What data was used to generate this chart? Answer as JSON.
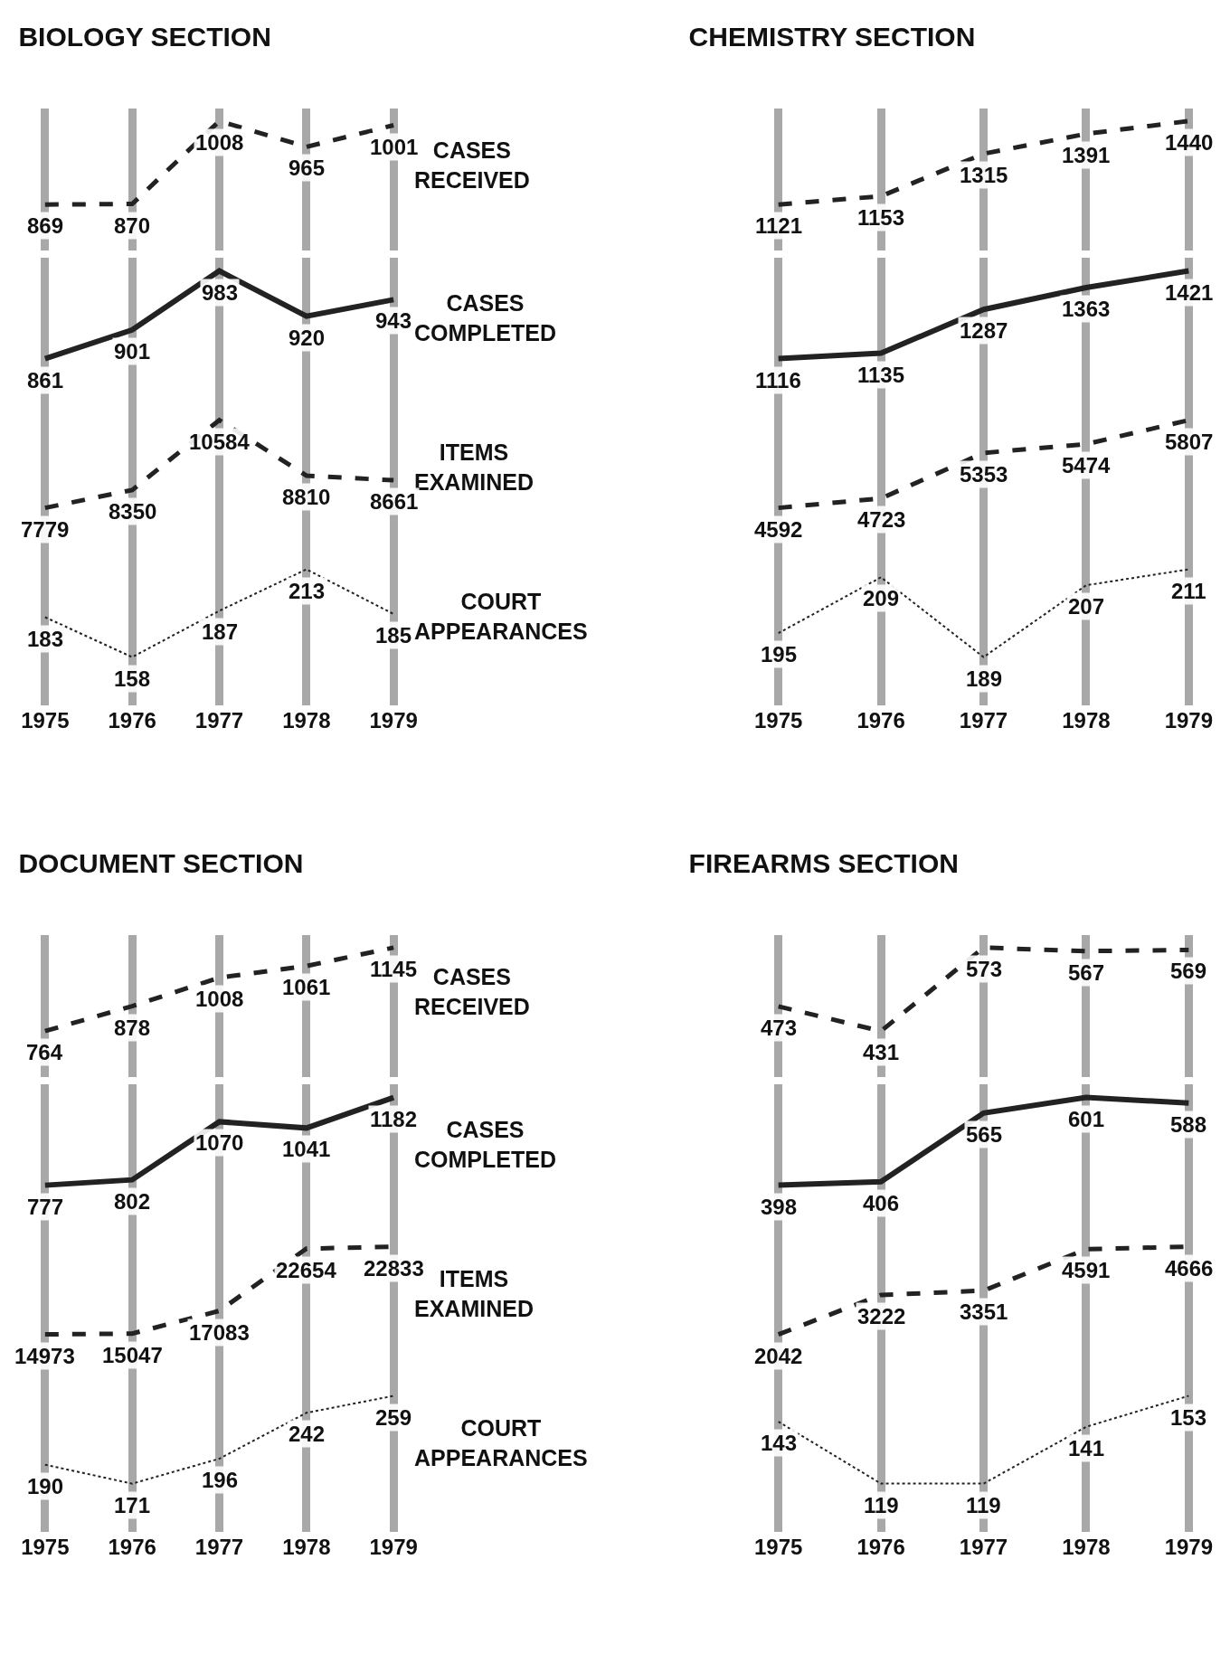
{
  "chart_data": [
    {
      "type": "line",
      "title": "BIOLOGY SECTION",
      "ylabel": "CASES RECEIVED",
      "categories": [
        "1975",
        "1976",
        "1977",
        "1978",
        "1979"
      ],
      "values": [
        869,
        870,
        1008,
        965,
        1001
      ],
      "color": "#222222",
      "line_style": "dashed",
      "data_labels": true,
      "grid": "x",
      "tick_labels": false
    },
    {
      "type": "line",
      "ylabel": "CASES COMPLETED",
      "categories": [
        "1975",
        "1976",
        "1977",
        "1978",
        "1979"
      ],
      "values": [
        861,
        901,
        983,
        920,
        943
      ],
      "color": "#222222",
      "line_style": "solid",
      "data_labels": true,
      "grid": "x",
      "tick_labels": false
    },
    {
      "type": "line",
      "ylabel": "ITEMS EXAMINED",
      "categories": [
        "1975",
        "1976",
        "1977",
        "1978",
        "1979"
      ],
      "values": [
        7779,
        8350,
        10584,
        8810,
        8661
      ],
      "color": "#222222",
      "line_style": "dashed",
      "data_labels": true,
      "grid": "x",
      "tick_labels": false
    },
    {
      "type": "line",
      "ylabel": "COURT APPEARANCES",
      "categories": [
        "1975",
        "1976",
        "1977",
        "1978",
        "1979"
      ],
      "values": [
        183,
        158,
        187,
        213,
        185
      ],
      "color": "#222222",
      "line_style": "dotted",
      "data_labels": true,
      "grid": "x",
      "tick_labels": "x"
    },
    {
      "type": "line",
      "title": "CHEMISTRY SECTION",
      "categories": [
        "1975",
        "1976",
        "1977",
        "1978",
        "1979"
      ],
      "values": [
        1121,
        1153,
        1315,
        1391,
        1440
      ],
      "color": "#222222",
      "line_style": "dashed",
      "data_labels": true,
      "grid": "x",
      "tick_labels": false
    },
    {
      "type": "line",
      "categories": [
        "1975",
        "1976",
        "1977",
        "1978",
        "1979"
      ],
      "values": [
        1116,
        1135,
        1287,
        1363,
        1421
      ],
      "color": "#222222",
      "line_style": "solid",
      "data_labels": true,
      "grid": "x",
      "tick_labels": false
    },
    {
      "type": "line",
      "categories": [
        "1975",
        "1976",
        "1977",
        "1978",
        "1979"
      ],
      "values": [
        4592,
        4723,
        5353,
        5474,
        5807
      ],
      "color": "#222222",
      "line_style": "dashed",
      "data_labels": true,
      "grid": "x",
      "tick_labels": false
    },
    {
      "type": "line",
      "categories": [
        "1975",
        "1976",
        "1977",
        "1978",
        "1979"
      ],
      "values": [
        195,
        209,
        189,
        207,
        211
      ],
      "color": "#222222",
      "line_style": "dotted",
      "data_labels": true,
      "grid": "x",
      "tick_labels": "x"
    },
    {
      "type": "line",
      "title": "DOCUMENT SECTION",
      "ylabel": "CASES RECEIVED",
      "categories": [
        "1975",
        "1976",
        "1977",
        "1978",
        "1979"
      ],
      "values": [
        764,
        878,
        1008,
        1061,
        1145
      ],
      "color": "#222222",
      "line_style": "dashed",
      "data_labels": true,
      "grid": "x",
      "tick_labels": false
    },
    {
      "type": "line",
      "ylabel": "CASES COMPLETED",
      "categories": [
        "1975",
        "1976",
        "1977",
        "1978",
        "1979"
      ],
      "values": [
        777,
        802,
        1070,
        1041,
        1182
      ],
      "color": "#222222",
      "line_style": "solid",
      "data_labels": true,
      "grid": "x",
      "tick_labels": false
    },
    {
      "type": "line",
      "ylabel": "ITEMS EXAMINED",
      "categories": [
        "1975",
        "1976",
        "1977",
        "1978",
        "1979"
      ],
      "values": [
        14973,
        15047,
        17083,
        22654,
        22833
      ],
      "color": "#222222",
      "line_style": "dashed",
      "data_labels": true,
      "grid": "x",
      "tick_labels": false
    },
    {
      "type": "line",
      "ylabel": "COURT APPEARANCES",
      "categories": [
        "1975",
        "1976",
        "1977",
        "1978",
        "1979"
      ],
      "values": [
        190,
        171,
        196,
        242,
        259
      ],
      "color": "#222222",
      "line_style": "dotted",
      "data_labels": true,
      "grid": "x",
      "tick_labels": "x"
    },
    {
      "type": "line",
      "title": "FIREARMS SECTION",
      "categories": [
        "1975",
        "1976",
        "1977",
        "1978",
        "1979"
      ],
      "values": [
        473,
        431,
        573,
        567,
        569
      ],
      "color": "#222222",
      "line_style": "dashed",
      "data_labels": true,
      "grid": "x",
      "tick_labels": false
    },
    {
      "type": "line",
      "categories": [
        "1975",
        "1976",
        "1977",
        "1978",
        "1979"
      ],
      "values": [
        398,
        406,
        565,
        601,
        588
      ],
      "color": "#222222",
      "line_style": "solid",
      "data_labels": true,
      "grid": "x",
      "tick_labels": false
    },
    {
      "type": "line",
      "categories": [
        "1975",
        "1976",
        "1977",
        "1978",
        "1979"
      ],
      "values": [
        2042,
        3222,
        3351,
        4591,
        4666
      ],
      "color": "#222222",
      "line_style": "dashed",
      "data_labels": true,
      "grid": "x",
      "tick_labels": false
    },
    {
      "type": "line",
      "categories": [
        "1975",
        "1976",
        "1977",
        "1978",
        "1979"
      ],
      "values": [
        143,
        119,
        119,
        141,
        153
      ],
      "color": "#222222",
      "line_style": "dotted",
      "data_labels": true,
      "grid": "x",
      "tick_labels": "x"
    }
  ]
}
